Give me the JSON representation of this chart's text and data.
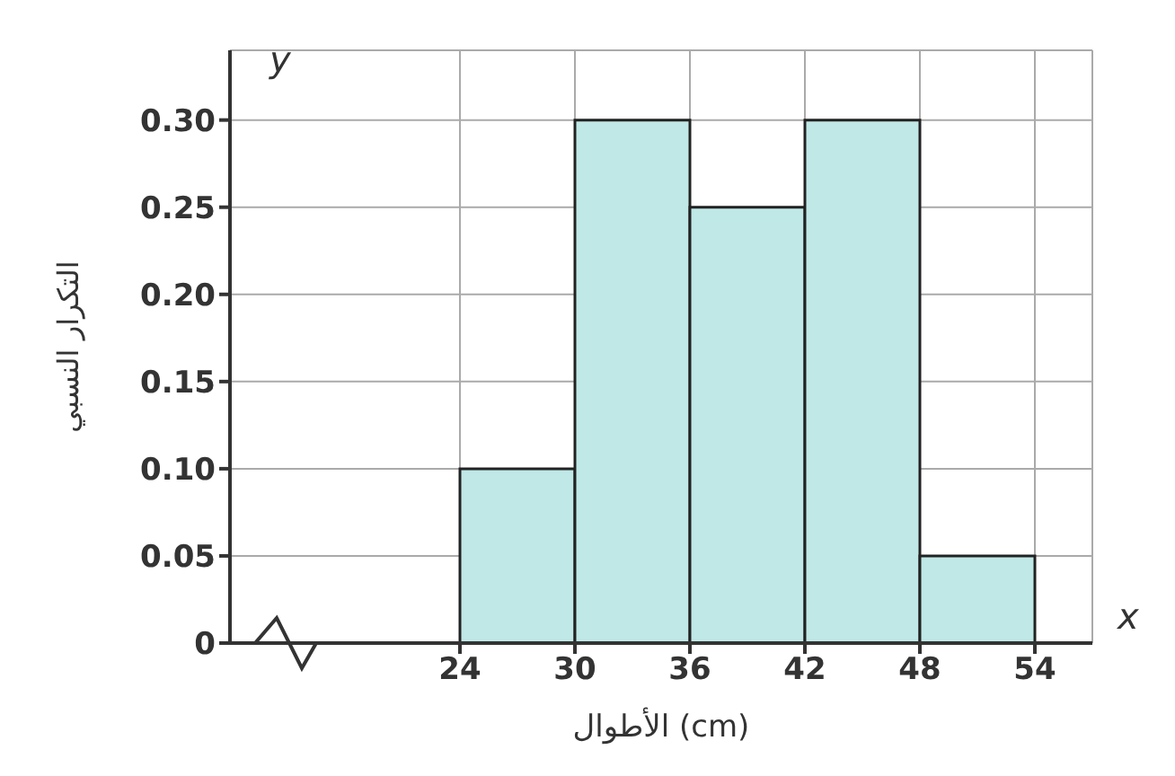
{
  "chart_data": {
    "type": "histogram",
    "xlabel": "الأطوال (cm)",
    "ylabel": "التكرار النسبي",
    "bins": [
      24,
      30,
      36,
      42,
      48,
      54
    ],
    "values": [
      0.1,
      0.3,
      0.25,
      0.3,
      0.05
    ],
    "color": "#bfe8e6",
    "xlim": [
      12,
      57
    ],
    "xticks": [
      24,
      30,
      36,
      42,
      48,
      54
    ],
    "ylim": [
      0,
      0.34
    ],
    "yticks": [
      0,
      0.05,
      {
        "value": 0.1,
        "label": "0.10"
      },
      0.15,
      {
        "value": 0.2,
        "label": "0.20"
      },
      0.25,
      {
        "value": 0.3,
        "label": "0.30"
      }
    ],
    "grid": true,
    "annotations": [
      "x",
      "y"
    ]
  }
}
